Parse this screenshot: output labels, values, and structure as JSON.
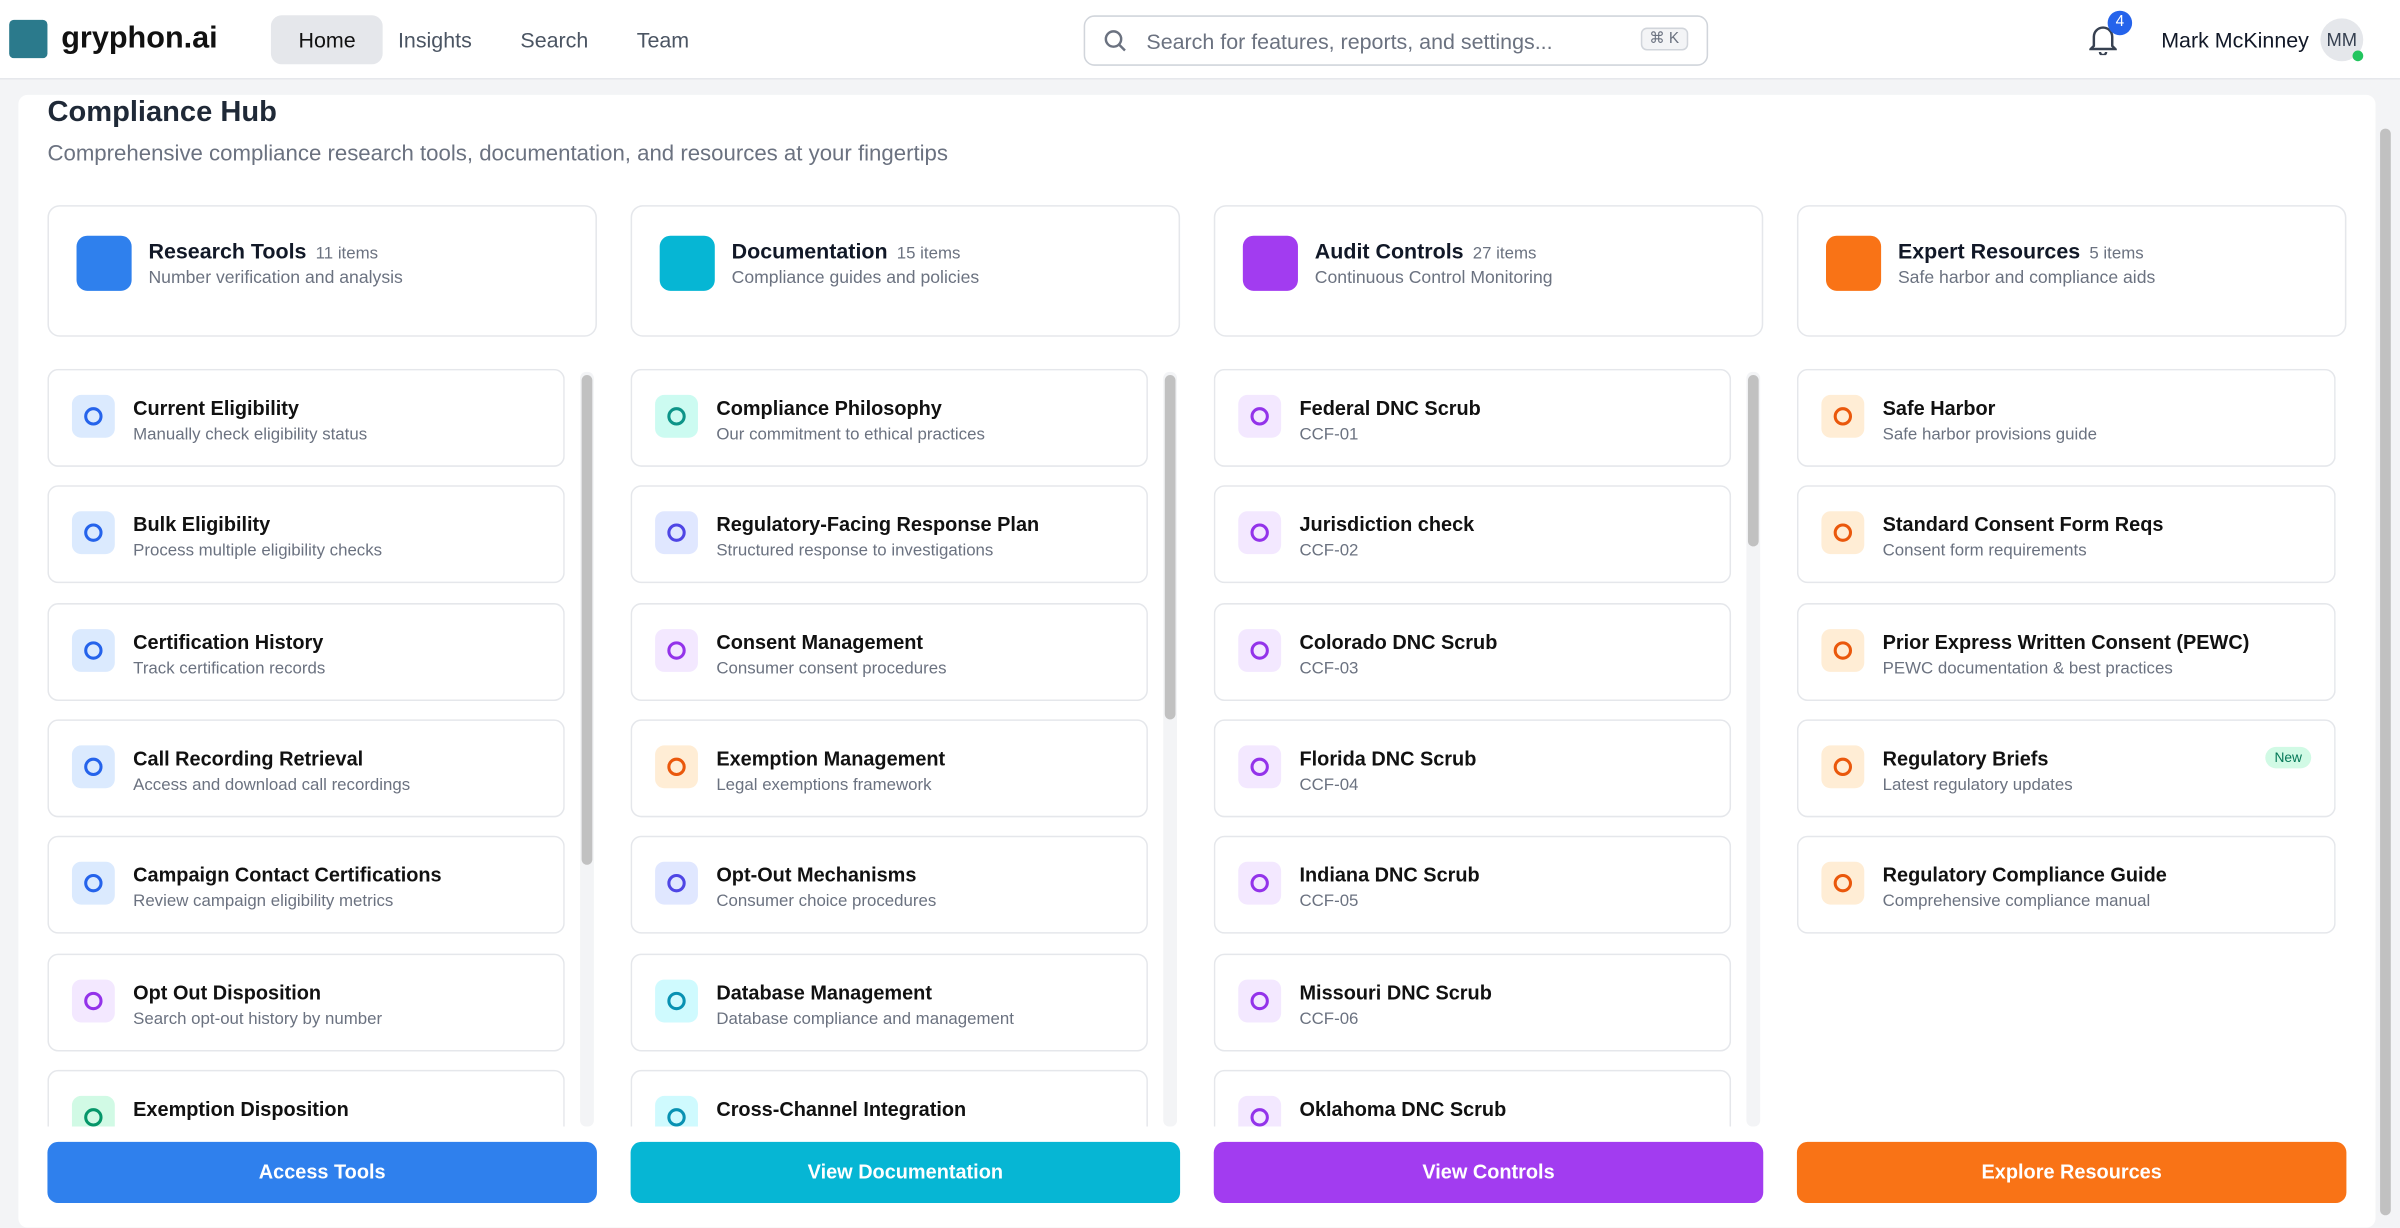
{
  "header": {
    "logo": "gryphon.ai",
    "nav": [
      "Home",
      "Insights",
      "Search",
      "Team"
    ],
    "search_placeholder": "Search for features, reports, and settings...",
    "shortcut": "⌘ K",
    "notification_count": "4",
    "user_name": "Mark McKinney",
    "user_initials": "MM"
  },
  "page": {
    "title": "Compliance Hub",
    "subtitle": "Comprehensive compliance research tools, documentation, and resources at your fingertips"
  },
  "columns": [
    {
      "title": "Research Tools",
      "count": "11 items",
      "description": "Number verification and analysis",
      "button": "Access Tools",
      "items": [
        {
          "title": "Current Eligibility",
          "subtitle": "Manually check eligibility status"
        },
        {
          "title": "Bulk Eligibility",
          "subtitle": "Process multiple eligibility checks"
        },
        {
          "title": "Certification History",
          "subtitle": "Track certification records"
        },
        {
          "title": "Call Recording Retrieval",
          "subtitle": "Access and download call recordings"
        },
        {
          "title": "Campaign Contact Certifications",
          "subtitle": "Review campaign eligibility metrics"
        },
        {
          "title": "Opt Out Disposition",
          "subtitle": "Search opt-out history by number"
        },
        {
          "title": "Exemption Disposition"
        }
      ]
    },
    {
      "title": "Documentation",
      "count": "15 items",
      "description": "Compliance guides and policies",
      "button": "View Documentation",
      "items": [
        {
          "title": "Compliance Philosophy",
          "subtitle": "Our commitment to ethical practices"
        },
        {
          "title": "Regulatory-Facing Response Plan",
          "subtitle": "Structured response to investigations"
        },
        {
          "title": "Consent Management",
          "subtitle": "Consumer consent procedures"
        },
        {
          "title": "Exemption Management",
          "subtitle": "Legal exemptions framework"
        },
        {
          "title": "Opt-Out Mechanisms",
          "subtitle": "Consumer choice procedures"
        },
        {
          "title": "Database Management",
          "subtitle": "Database compliance and management"
        },
        {
          "title": "Cross-Channel Integration"
        }
      ]
    },
    {
      "title": "Audit Controls",
      "count": "27 items",
      "description": "Continuous Control Monitoring",
      "button": "View Controls",
      "items": [
        {
          "title": "Federal DNC Scrub",
          "subtitle": "CCF-01"
        },
        {
          "title": "Jurisdiction check",
          "subtitle": "CCF-02"
        },
        {
          "title": "Colorado DNC Scrub",
          "subtitle": "CCF-03"
        },
        {
          "title": "Florida DNC Scrub",
          "subtitle": "CCF-04"
        },
        {
          "title": "Indiana DNC Scrub",
          "subtitle": "CCF-05"
        },
        {
          "title": "Missouri DNC Scrub",
          "subtitle": "CCF-06"
        },
        {
          "title": "Oklahoma DNC Scrub"
        }
      ]
    },
    {
      "title": "Expert Resources",
      "count": "5 items",
      "description": "Safe harbor and compliance aids",
      "button": "Explore Resources",
      "items": [
        {
          "title": "Safe Harbor",
          "subtitle": "Safe harbor provisions guide"
        },
        {
          "title": "Standard Consent Form Reqs",
          "subtitle": "Consent form requirements"
        },
        {
          "title": "Prior Express Written Consent (PEWC)",
          "subtitle": "PEWC documentation & best practices"
        },
        {
          "title": "Regulatory Briefs",
          "subtitle": "Latest regulatory updates",
          "badge": "New"
        },
        {
          "title": "Regulatory Compliance Guide",
          "subtitle": "Comprehensive compliance manual"
        }
      ]
    }
  ]
}
